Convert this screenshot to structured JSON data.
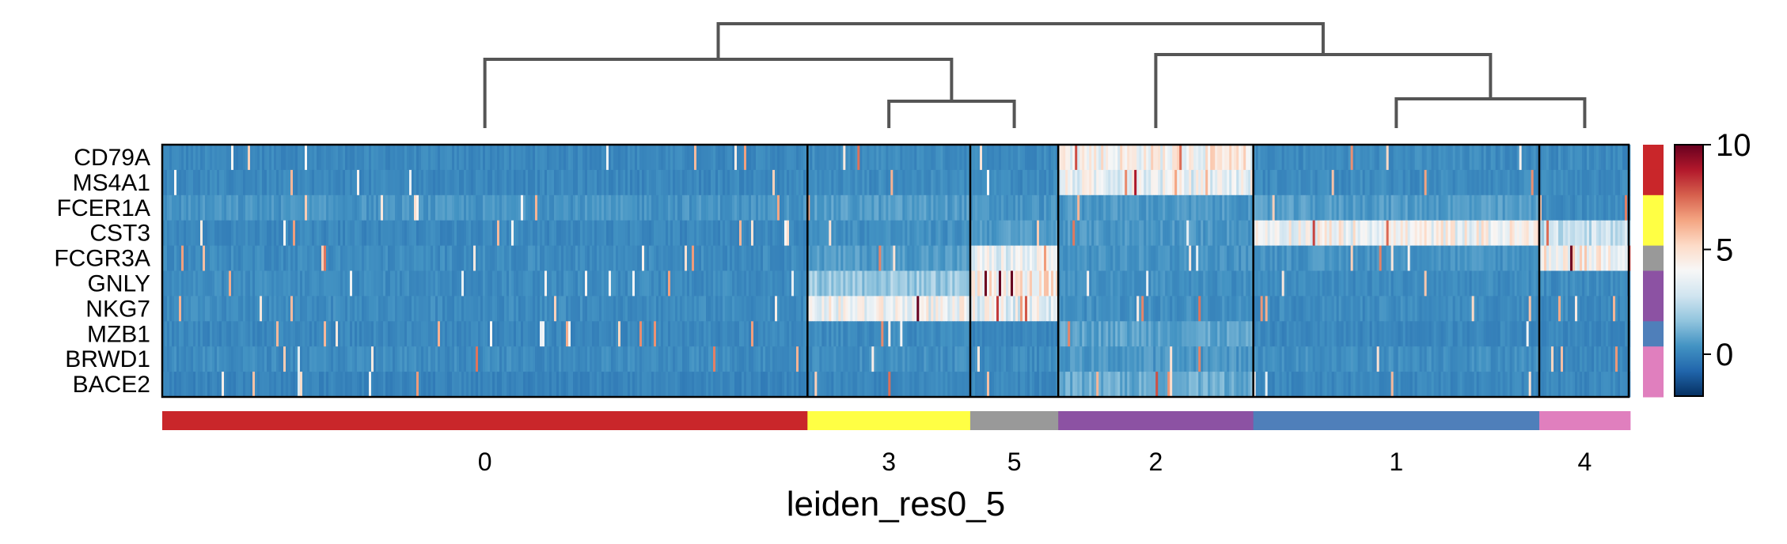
{
  "chart_data": {
    "type": "heatmap",
    "title": "",
    "xlabel": "leiden_res0_5",
    "ylabel": "",
    "genes": [
      "CD79A",
      "MS4A1",
      "FCER1A",
      "CST3",
      "FCGR3A",
      "GNLY",
      "NKG7",
      "MZB1",
      "BRWD1",
      "BACE2"
    ],
    "groups": [
      {
        "name": "0",
        "color": "#c9262a",
        "cell_fraction": 0.44
      },
      {
        "name": "3",
        "color": "#ffff44",
        "cell_fraction": 0.111
      },
      {
        "name": "5",
        "color": "#999999",
        "cell_fraction": 0.06
      },
      {
        "name": "2",
        "color": "#8c52a3",
        "cell_fraction": 0.133
      },
      {
        "name": "1",
        "color": "#4f7fba",
        "cell_fraction": 0.195
      },
      {
        "name": "4",
        "color": "#e07fbe",
        "cell_fraction": 0.062
      }
    ],
    "mean_expression": [
      [
        0.1,
        0.2,
        0.2,
        4.2,
        0.2,
        0.2
      ],
      [
        0.1,
        0.2,
        0.2,
        3.6,
        0.2,
        0.2
      ],
      [
        0.4,
        0.6,
        0.4,
        0.5,
        0.6,
        0.2
      ],
      [
        0.1,
        0.3,
        0.6,
        0.5,
        4.0,
        2.6
      ],
      [
        0.2,
        0.6,
        3.5,
        0.4,
        0.4,
        4.3
      ],
      [
        0.2,
        1.8,
        4.4,
        0.3,
        0.2,
        0.2
      ],
      [
        0.2,
        3.8,
        3.6,
        0.3,
        0.2,
        0.2
      ],
      [
        0.1,
        0.2,
        0.1,
        0.8,
        0.1,
        0.1
      ],
      [
        0.2,
        0.3,
        0.2,
        0.5,
        0.3,
        0.1
      ],
      [
        0.0,
        0.1,
        0.1,
        1.0,
        0.1,
        0.1
      ]
    ],
    "gene_group_colors": [
      "#c9262a",
      "#c9262a",
      "#ffff44",
      "#ffff44",
      "#999999",
      "#8c52a3",
      "#8c52a3",
      "#4f7fba",
      "#e07fbe",
      "#e07fbe"
    ],
    "colormap": "RdBu_r",
    "colorbar": {
      "min": -2,
      "max": 10,
      "ticks": [
        0,
        5,
        10
      ]
    },
    "dendrogram": "top"
  }
}
